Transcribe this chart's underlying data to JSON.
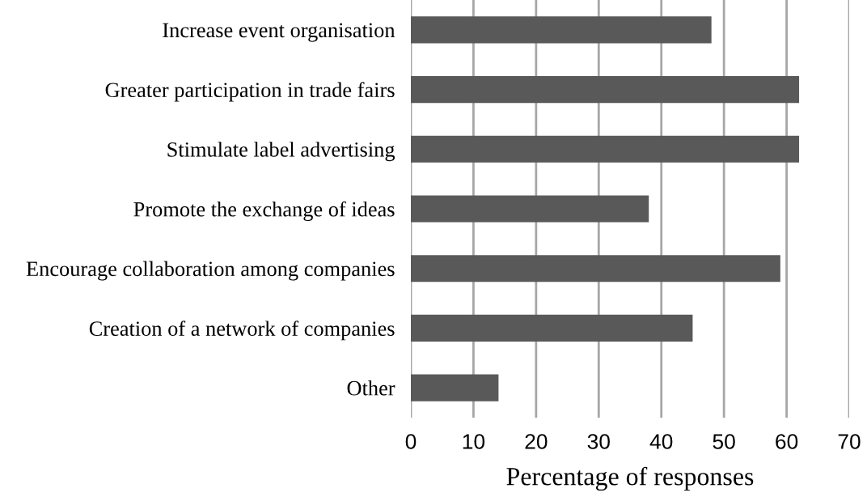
{
  "chart_data": {
    "type": "bar",
    "orientation": "horizontal",
    "categories": [
      "Increase event organisation",
      "Greater participation in trade fairs",
      "Stimulate label advertising",
      "Promote the exchange of ideas",
      "Encourage collaboration among companies",
      "Creation of a network of companies",
      "Other"
    ],
    "values": [
      48,
      62,
      62,
      38,
      59,
      45,
      14
    ],
    "color": "#595959",
    "xlim": [
      0,
      70
    ],
    "xticks": [
      0,
      10,
      20,
      30,
      40,
      50,
      60,
      70
    ],
    "xlabel": "Percentage of responses",
    "grid": "x"
  }
}
